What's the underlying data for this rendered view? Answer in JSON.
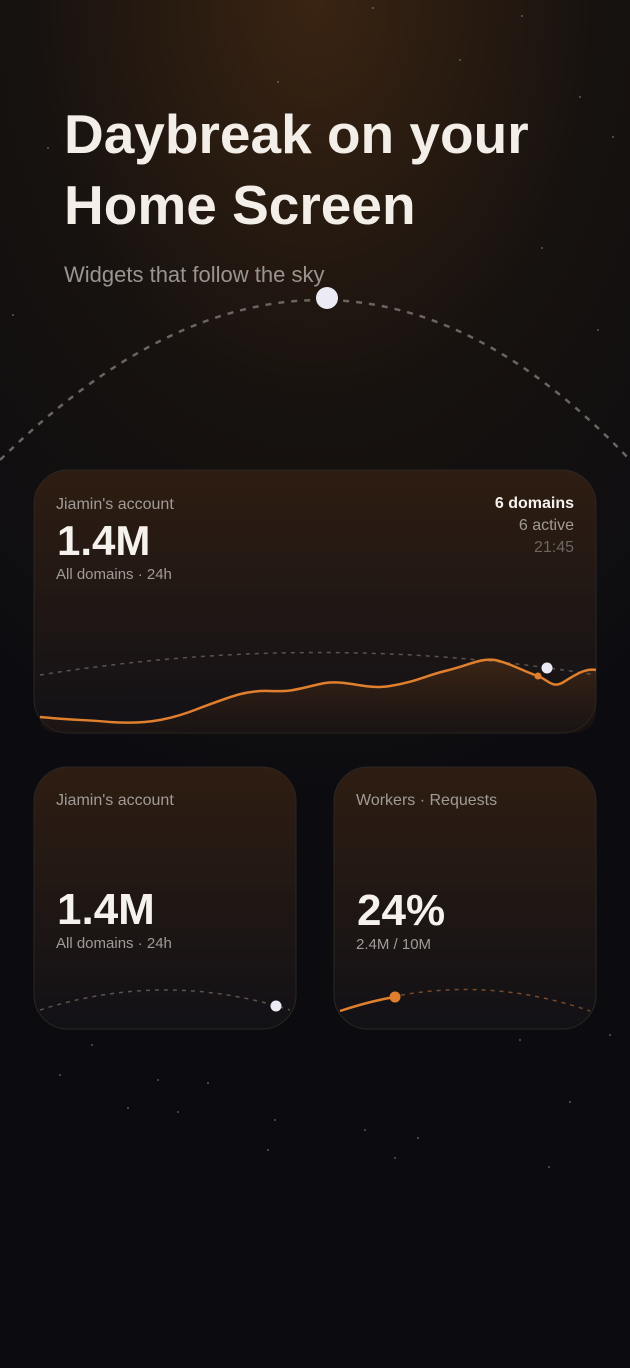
{
  "header": {
    "title": [
      "Daybreak on your",
      "Home Screen"
    ],
    "subtitle": "Widgets that follow the sky"
  },
  "widgets": [
    {
      "account": "Jiamin's account",
      "value": "1.4M",
      "caption": "All domains · 24h",
      "domains": "6 domains",
      "active": "6 active",
      "time": "21:45"
    },
    {
      "account": "Jiamin's account",
      "value": "1.4M",
      "caption": "All domains · 24h"
    },
    {
      "account": "Workers · Requests",
      "value": "24%",
      "caption": "2.4M / 10M"
    }
  ]
}
